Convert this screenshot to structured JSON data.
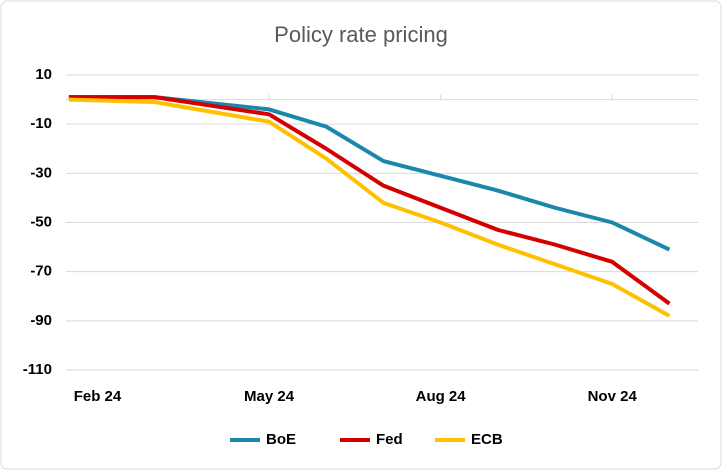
{
  "chart_data": {
    "type": "line",
    "title": "Policy rate pricing",
    "x": [
      -0.5,
      1,
      3,
      4,
      5,
      6,
      7,
      8,
      9,
      10
    ],
    "xlim": [
      -0.55,
      10.5
    ],
    "xticks": [
      {
        "value": 0,
        "label": "Feb 24"
      },
      {
        "value": 3,
        "label": "May 24"
      },
      {
        "value": 6,
        "label": "Aug 24"
      },
      {
        "value": 9,
        "label": "Nov 24"
      }
    ],
    "ylim": [
      -110,
      10
    ],
    "yticks": [
      -110,
      -90,
      -70,
      -50,
      -30,
      -10,
      10
    ],
    "grid": true,
    "legend": "bottom",
    "series": [
      {
        "name": "BoE",
        "color": "#1b87aa",
        "values": [
          1,
          1,
          -4,
          -11,
          -25,
          -31,
          -37,
          -44,
          -50,
          -61
        ]
      },
      {
        "name": "Fed",
        "color": "#d40000",
        "values": [
          1,
          1,
          -6,
          -20,
          -35,
          -44,
          -53,
          -59,
          -66,
          -83
        ]
      },
      {
        "name": "ECB",
        "color": "#ffc000",
        "values": [
          0,
          -1,
          -9,
          -24,
          -42,
          -50,
          -59,
          -67,
          -75,
          -88
        ]
      }
    ]
  }
}
